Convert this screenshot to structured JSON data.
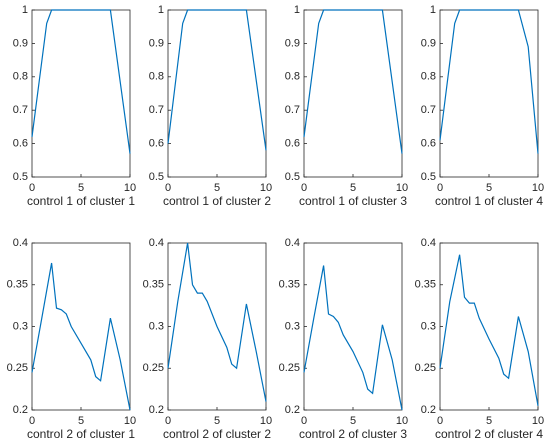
{
  "chart_data": [
    {
      "type": "line",
      "xlabel": "control 1 of cluster 1",
      "color": "#0072bd",
      "xlim": [
        0,
        10
      ],
      "ylim": [
        0.5,
        1
      ],
      "xticks": [
        0,
        5,
        10
      ],
      "yticks": [
        0.5,
        0.6,
        0.7,
        0.8,
        0.9,
        1
      ],
      "x": [
        0,
        1.5,
        2,
        8,
        10
      ],
      "values": [
        0.62,
        0.96,
        1,
        1,
        0.57
      ]
    },
    {
      "type": "line",
      "xlabel": "control 1 of cluster 2",
      "color": "#0072bd",
      "xlim": [
        0,
        10
      ],
      "ylim": [
        0.5,
        1
      ],
      "xticks": [
        0,
        5,
        10
      ],
      "yticks": [
        0.5,
        0.6,
        0.7,
        0.8,
        0.9,
        1
      ],
      "x": [
        0,
        1.5,
        2,
        8,
        10
      ],
      "values": [
        0.6,
        0.96,
        1,
        1,
        0.58
      ]
    },
    {
      "type": "line",
      "xlabel": "control 1 of cluster 3",
      "color": "#0072bd",
      "xlim": [
        0,
        10
      ],
      "ylim": [
        0.5,
        1
      ],
      "xticks": [
        0,
        5,
        10
      ],
      "yticks": [
        0.5,
        0.6,
        0.7,
        0.8,
        0.9,
        1
      ],
      "x": [
        0,
        1.5,
        2,
        8,
        10
      ],
      "values": [
        0.62,
        0.96,
        1,
        1,
        0.57
      ]
    },
    {
      "type": "line",
      "xlabel": "control 1 of cluster 4",
      "color": "#0072bd",
      "xlim": [
        0,
        10
      ],
      "ylim": [
        0.5,
        1
      ],
      "xticks": [
        0,
        5,
        10
      ],
      "yticks": [
        0.5,
        0.6,
        0.7,
        0.8,
        0.9,
        1
      ],
      "x": [
        0,
        1.5,
        2,
        8,
        9,
        10
      ],
      "values": [
        0.61,
        0.96,
        1,
        1,
        0.89,
        0.57
      ]
    },
    {
      "type": "line",
      "xlabel": "control 2 of cluster 1",
      "color": "#0072bd",
      "xlim": [
        0,
        10
      ],
      "ylim": [
        0.2,
        0.4
      ],
      "xticks": [
        0,
        5,
        10
      ],
      "yticks": [
        0.2,
        0.25,
        0.3,
        0.35,
        0.4
      ],
      "x": [
        0,
        1,
        2,
        2.5,
        3,
        3.5,
        4,
        5,
        6,
        6.5,
        7,
        8,
        9,
        10
      ],
      "values": [
        0.245,
        0.31,
        0.376,
        0.322,
        0.32,
        0.315,
        0.3,
        0.28,
        0.26,
        0.24,
        0.235,
        0.31,
        0.26,
        0.2
      ]
    },
    {
      "type": "line",
      "xlabel": "control 2 of cluster 2",
      "color": "#0072bd",
      "xlim": [
        0,
        10
      ],
      "ylim": [
        0.2,
        0.4
      ],
      "xticks": [
        0,
        5,
        10
      ],
      "yticks": [
        0.2,
        0.25,
        0.3,
        0.35,
        0.4
      ],
      "x": [
        0,
        1,
        2,
        2.5,
        3,
        3.5,
        4,
        5,
        6,
        6.5,
        7,
        8,
        9,
        10
      ],
      "values": [
        0.25,
        0.33,
        0.4,
        0.35,
        0.34,
        0.34,
        0.33,
        0.3,
        0.275,
        0.255,
        0.25,
        0.327,
        0.27,
        0.21
      ]
    },
    {
      "type": "line",
      "xlabel": "control 2 of cluster 3",
      "color": "#0072bd",
      "xlim": [
        0,
        10
      ],
      "ylim": [
        0.2,
        0.4
      ],
      "xticks": [
        0,
        5,
        10
      ],
      "yticks": [
        0.2,
        0.25,
        0.3,
        0.35,
        0.4
      ],
      "x": [
        0,
        1,
        2,
        2.5,
        3,
        3.5,
        4,
        5,
        6,
        6.5,
        7,
        8,
        9,
        10
      ],
      "values": [
        0.245,
        0.31,
        0.373,
        0.315,
        0.312,
        0.305,
        0.29,
        0.27,
        0.245,
        0.225,
        0.22,
        0.302,
        0.26,
        0.2
      ]
    },
    {
      "type": "line",
      "xlabel": "control 2 of cluster 4",
      "color": "#0072bd",
      "xlim": [
        0,
        10
      ],
      "ylim": [
        0.2,
        0.4
      ],
      "xticks": [
        0,
        5,
        10
      ],
      "yticks": [
        0.2,
        0.25,
        0.3,
        0.35,
        0.4
      ],
      "x": [
        0,
        1,
        2,
        2.5,
        3,
        3.5,
        4,
        5,
        6,
        6.5,
        7,
        8,
        9,
        10
      ],
      "values": [
        0.25,
        0.33,
        0.386,
        0.335,
        0.328,
        0.328,
        0.31,
        0.285,
        0.262,
        0.243,
        0.238,
        0.312,
        0.27,
        0.205
      ]
    }
  ]
}
